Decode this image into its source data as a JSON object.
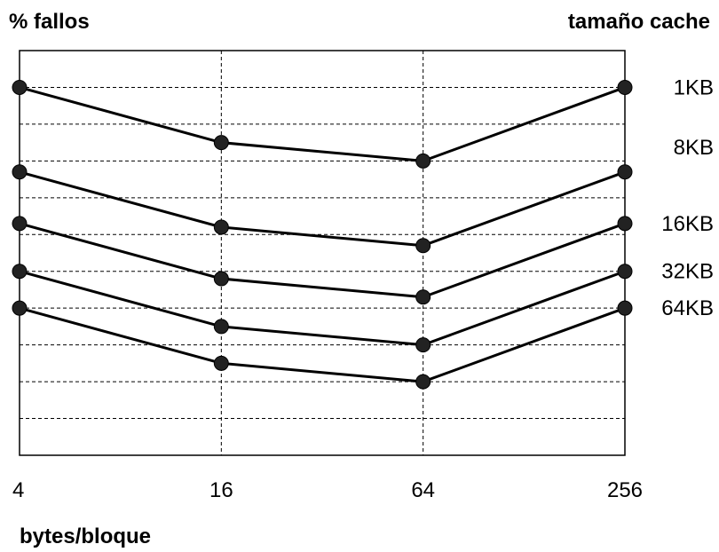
{
  "chart_data": {
    "type": "line",
    "ylabel": "% fallos",
    "xlabel": "bytes/bloque",
    "legend_title": "tamaño cache",
    "legend_placement": "right",
    "x_scale": "log",
    "categories": [
      "4",
      "16",
      "64",
      "256"
    ],
    "y_ticks": "unlabeled",
    "grid": true,
    "series": [
      {
        "name": "1KB",
        "values": [
          9.0,
          7.5,
          7.0,
          9.0
        ]
      },
      {
        "name": "8KB",
        "values": [
          6.7,
          5.2,
          4.7,
          6.7
        ]
      },
      {
        "name": "16KB",
        "values": [
          5.3,
          3.8,
          3.3,
          5.3
        ]
      },
      {
        "name": "32KB",
        "values": [
          4.0,
          2.5,
          2.0,
          4.0
        ]
      },
      {
        "name": "64KB",
        "values": [
          3.0,
          1.5,
          1.0,
          3.0
        ]
      }
    ],
    "ylim": [
      -1,
      10
    ]
  }
}
